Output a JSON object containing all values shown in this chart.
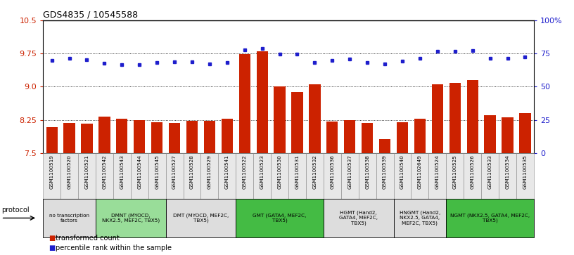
{
  "title": "GDS4835 / 10545588",
  "samples": [
    "GSM1100519",
    "GSM1100520",
    "GSM1100521",
    "GSM1100542",
    "GSM1100543",
    "GSM1100544",
    "GSM1100545",
    "GSM1100527",
    "GSM1100528",
    "GSM1100529",
    "GSM1100541",
    "GSM1100522",
    "GSM1100523",
    "GSM1100530",
    "GSM1100531",
    "GSM1100532",
    "GSM1100536",
    "GSM1100537",
    "GSM1100538",
    "GSM1100539",
    "GSM1100540",
    "GSM1102649",
    "GSM1100524",
    "GSM1100525",
    "GSM1100526",
    "GSM1100533",
    "GSM1100534",
    "GSM1100535"
  ],
  "bar_values": [
    8.08,
    8.18,
    8.16,
    8.33,
    8.28,
    8.24,
    8.2,
    8.18,
    8.22,
    8.22,
    8.27,
    9.73,
    9.8,
    9.0,
    8.88,
    9.06,
    8.21,
    8.25,
    8.18,
    7.82,
    8.2,
    8.28,
    9.05,
    9.08,
    9.15,
    8.35,
    8.3,
    8.4
  ],
  "dot_values": [
    9.6,
    9.64,
    9.61,
    9.53,
    9.5,
    9.5,
    9.55,
    9.57,
    9.57,
    9.52,
    9.55,
    9.83,
    9.87,
    9.74,
    9.73,
    9.55,
    9.6,
    9.62,
    9.55,
    9.52,
    9.58,
    9.65,
    9.8,
    9.8,
    9.82,
    9.65,
    9.64,
    9.68
  ],
  "ylim": [
    7.5,
    10.5
  ],
  "yticks_left": [
    7.5,
    8.25,
    9.0,
    9.75,
    10.5
  ],
  "yticks_right_vals": [
    7.5,
    8.25,
    9.0,
    9.75,
    10.5
  ],
  "yticks_right_labels": [
    "0",
    "25",
    "50",
    "75",
    "100%"
  ],
  "bar_color": "#CC2200",
  "dot_color": "#1E1ECC",
  "protocol_groups": [
    {
      "label": "no transcription\nfactors",
      "start": 0,
      "end": 3,
      "color": "#DDDDDD"
    },
    {
      "label": "DMNT (MYOCD,\nNKX2.5, MEF2C, TBX5)",
      "start": 3,
      "end": 7,
      "color": "#99DD99"
    },
    {
      "label": "DMT (MYOCD, MEF2C,\nTBX5)",
      "start": 7,
      "end": 11,
      "color": "#DDDDDD"
    },
    {
      "label": "GMT (GATA4, MEF2C,\nTBX5)",
      "start": 11,
      "end": 16,
      "color": "#44BB44"
    },
    {
      "label": "HGMT (Hand2,\nGATA4, MEF2C,\nTBX5)",
      "start": 16,
      "end": 20,
      "color": "#DDDDDD"
    },
    {
      "label": "HNGMT (Hand2,\nNKX2.5, GATA4,\nMEF2C, TBX5)",
      "start": 20,
      "end": 23,
      "color": "#DDDDDD"
    },
    {
      "label": "NGMT (NKX2.5, GATA4, MEF2C,\nTBX5)",
      "start": 23,
      "end": 28,
      "color": "#44BB44"
    }
  ],
  "legend_items": [
    {
      "label": "transformed count",
      "color": "#CC2200"
    },
    {
      "label": "percentile rank within the sample",
      "color": "#1E1ECC"
    }
  ]
}
